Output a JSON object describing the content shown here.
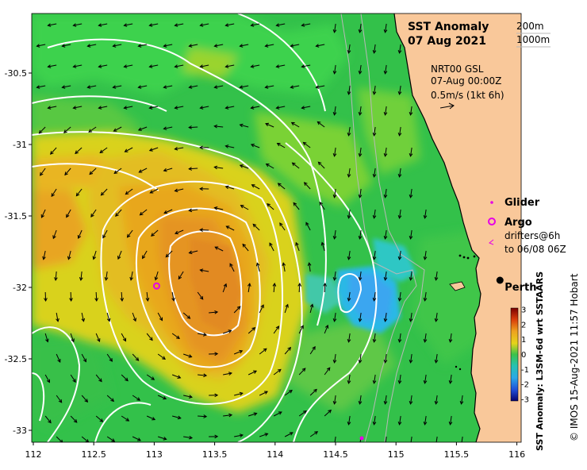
{
  "title": {
    "line1": "SST Anomaly",
    "line2": "07 Aug 2021"
  },
  "depth_legend": {
    "d1": "200m",
    "d2": "1000m"
  },
  "current_info": {
    "source": "NRT00 GSL",
    "time": "07-Aug 00:00Z",
    "scale": "0.5m/s (1kt 6h)"
  },
  "legend": {
    "glider": "Glider",
    "argo": "Argo",
    "drifters_line1": "drifters@6h",
    "drifters_line2": "to 06/08 06Z"
  },
  "place": {
    "perth": "Perth"
  },
  "colorbar": {
    "label": "SST Anomaly: L3SM-6d wrt SSTAARS",
    "ticks": [
      "3",
      "2",
      "1",
      "0",
      "-1",
      "-2",
      "-3"
    ]
  },
  "credit": "© IMOS 15-Aug-2021 11:57 Hobart",
  "axes": {
    "x_ticks": [
      "112",
      "112.5",
      "113",
      "113.5",
      "114",
      "114.5",
      "115",
      "115.5",
      "116"
    ],
    "y_ticks": [
      "-30.5",
      "-31",
      "-31.5",
      "-32",
      "-32.5",
      "-33"
    ]
  },
  "colors": {
    "land": "#f9c89a",
    "green": "#33c14a",
    "yellow": "#e6d41a",
    "orange": "#e39a1e",
    "cyan": "#2ab8e6",
    "argo": "#e600e6"
  },
  "markers": {
    "argo": {
      "lon": 113.02,
      "lat": -31.99
    },
    "perth": {
      "lon": 115.86,
      "lat": -31.95
    }
  }
}
